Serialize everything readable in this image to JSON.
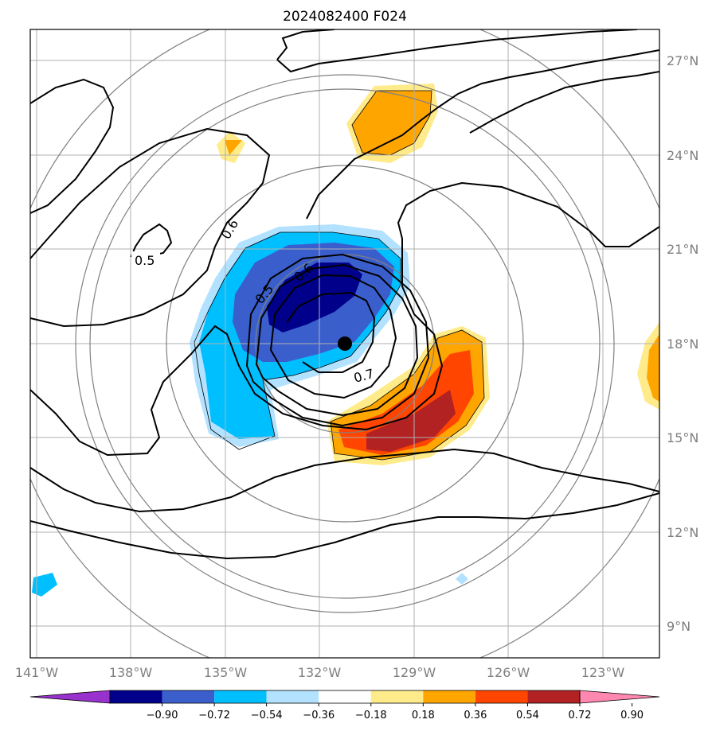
{
  "title": "2024082400 F024",
  "longitude_labels": [
    "141°W",
    "138°W",
    "135°W",
    "132°W",
    "129°W",
    "126°W",
    "123°W"
  ],
  "latitude_labels": [
    "27°N",
    "24°N",
    "21°N",
    "18°N",
    "15°N",
    "12°N",
    "9°N"
  ],
  "colorbar": {
    "ticks": [
      "−0.90",
      "−0.72",
      "−0.54",
      "−0.36",
      "−0.18",
      "0.18",
      "0.36",
      "0.54",
      "0.72",
      "0.90"
    ],
    "colors": [
      "#9932cc",
      "#00008b",
      "#3a5fcd",
      "#00bfff",
      "#b2e2ff",
      "#ffffff",
      "#ffeb8a",
      "#ffa500",
      "#ff4500",
      "#b22222",
      "#ff88b0"
    ]
  },
  "contour_labels": [
    "0.5",
    "0.6",
    "0.5",
    "0.6",
    "0.7"
  ],
  "center_marker": "storm-center",
  "colors": {
    "frame": "#000000",
    "grid": "#b0b0b0",
    "range_rings": "#808080",
    "contour": "#000000"
  }
}
